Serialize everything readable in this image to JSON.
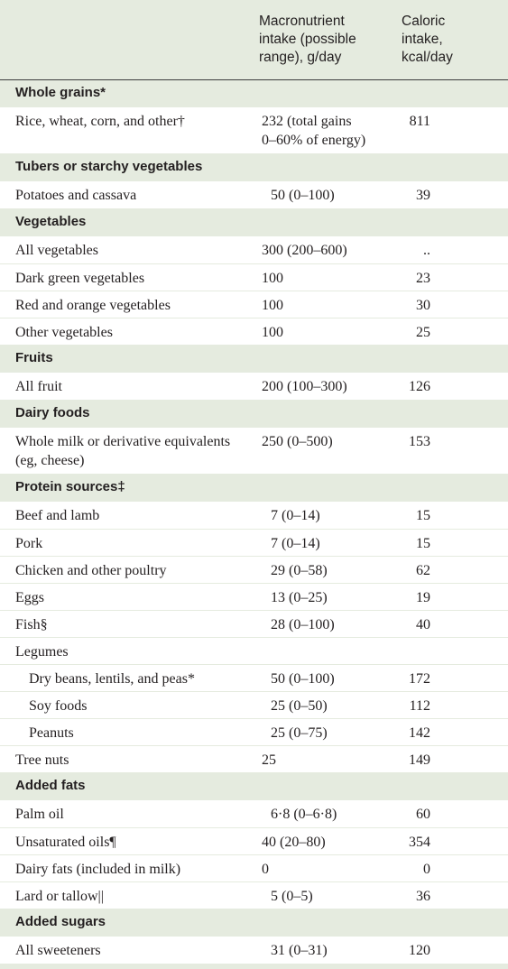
{
  "header": {
    "col_macro": [
      "Macronutrient",
      "intake (possible",
      "range), g/day"
    ],
    "col_kcal": [
      "Caloric",
      "intake,",
      "kcal/day"
    ]
  },
  "rows": [
    {
      "type": "section",
      "label": "Whole grains*"
    },
    {
      "type": "data",
      "name": [
        "Rice, wheat, corn, and other†"
      ],
      "macro": [
        "232 (total gains",
        "0–60% of energy)"
      ],
      "kcal": "811"
    },
    {
      "type": "section",
      "label": "Tubers or starchy vegetables"
    },
    {
      "type": "data",
      "name": [
        "Potatoes and cassava"
      ],
      "macro": [
        "50 (0–100)"
      ],
      "kcal": "39",
      "centered": true
    },
    {
      "type": "section",
      "label": "Vegetables"
    },
    {
      "type": "data",
      "name": [
        "All vegetables"
      ],
      "macro": [
        "300 (200–600)"
      ],
      "kcal": ".."
    },
    {
      "type": "data",
      "name": [
        "Dark green vegetables"
      ],
      "macro": [
        "100"
      ],
      "kcal": "23"
    },
    {
      "type": "data",
      "name": [
        "Red and orange vegetables"
      ],
      "macro": [
        "100"
      ],
      "kcal": "30"
    },
    {
      "type": "data",
      "name": [
        "Other vegetables"
      ],
      "macro": [
        "100"
      ],
      "kcal": "25"
    },
    {
      "type": "section",
      "label": "Fruits"
    },
    {
      "type": "data",
      "name": [
        "All fruit"
      ],
      "macro": [
        "200 (100–300)"
      ],
      "kcal": "126"
    },
    {
      "type": "section",
      "label": "Dairy foods"
    },
    {
      "type": "data",
      "name": [
        "Whole milk or derivative equivalents",
        "(eg, cheese)"
      ],
      "macro": [
        "250 (0–500)"
      ],
      "kcal": "153"
    },
    {
      "type": "section",
      "label": "Protein sources‡"
    },
    {
      "type": "data",
      "name": [
        "Beef and lamb"
      ],
      "macro": [
        "7 (0–14)"
      ],
      "kcal": "15",
      "centered": true
    },
    {
      "type": "data",
      "name": [
        "Pork"
      ],
      "macro": [
        "7 (0–14)"
      ],
      "kcal": "15",
      "centered": true
    },
    {
      "type": "data",
      "name": [
        "Chicken and other poultry"
      ],
      "macro": [
        "29 (0–58)"
      ],
      "kcal": "62",
      "centered": true
    },
    {
      "type": "data",
      "name": [
        "Eggs"
      ],
      "macro": [
        "13 (0–25)"
      ],
      "kcal": "19",
      "centered": true
    },
    {
      "type": "data",
      "name": [
        "Fish§"
      ],
      "macro": [
        "28 (0–100)"
      ],
      "kcal": "40",
      "centered": true
    },
    {
      "type": "data",
      "name": [
        "Legumes"
      ],
      "macro": [
        ""
      ],
      "kcal": ""
    },
    {
      "type": "data",
      "name": [
        "Dry beans, lentils, and peas*"
      ],
      "macro": [
        "50 (0–100)"
      ],
      "kcal": "172",
      "indent": true,
      "centered": true
    },
    {
      "type": "data",
      "name": [
        "Soy foods"
      ],
      "macro": [
        "25 (0–50)"
      ],
      "kcal": "112",
      "indent": true,
      "centered": true
    },
    {
      "type": "data",
      "name": [
        "Peanuts"
      ],
      "macro": [
        "25 (0–75)"
      ],
      "kcal": "142",
      "indent": true,
      "centered": true
    },
    {
      "type": "data",
      "name": [
        "Tree nuts"
      ],
      "macro": [
        "25"
      ],
      "kcal": "149"
    },
    {
      "type": "section",
      "label": "Added fats"
    },
    {
      "type": "data",
      "name": [
        "Palm oil"
      ],
      "macro": [
        "6·8 (0–6·8)"
      ],
      "kcal": "60",
      "centered": true
    },
    {
      "type": "data",
      "name": [
        "Unsaturated oils¶"
      ],
      "macro": [
        "40 (20–80)"
      ],
      "kcal": "354"
    },
    {
      "type": "data",
      "name": [
        "Dairy fats (included in milk)"
      ],
      "macro": [
        "0"
      ],
      "kcal": "0"
    },
    {
      "type": "data",
      "name": [
        "Lard or tallow||"
      ],
      "macro": [
        "5 (0–5)"
      ],
      "kcal": "36",
      "centered": true
    },
    {
      "type": "section",
      "label": "Added sugars"
    },
    {
      "type": "data",
      "name": [
        "All sweeteners"
      ],
      "macro": [
        "31 (0–31)"
      ],
      "kcal": "120",
      "centered": true
    }
  ]
}
